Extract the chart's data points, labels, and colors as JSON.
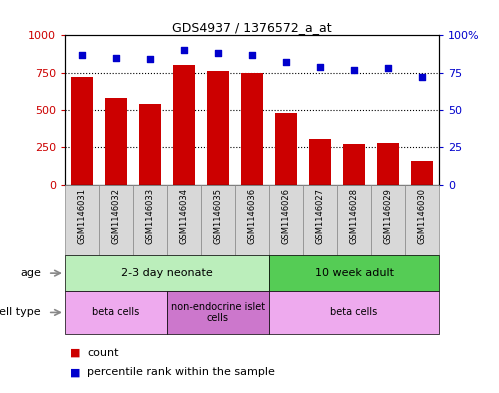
{
  "title": "GDS4937 / 1376572_a_at",
  "samples": [
    "GSM1146031",
    "GSM1146032",
    "GSM1146033",
    "GSM1146034",
    "GSM1146035",
    "GSM1146036",
    "GSM1146026",
    "GSM1146027",
    "GSM1146028",
    "GSM1146029",
    "GSM1146030"
  ],
  "counts": [
    720,
    580,
    540,
    800,
    760,
    750,
    480,
    305,
    275,
    280,
    160
  ],
  "percentiles": [
    87,
    85,
    84,
    90,
    88,
    87,
    82,
    79,
    77,
    78,
    72
  ],
  "bar_color": "#cc0000",
  "dot_color": "#0000cc",
  "ylim_left": [
    0,
    1000
  ],
  "ylim_right": [
    0,
    100
  ],
  "yticks_left": [
    0,
    250,
    500,
    750,
    1000
  ],
  "ytick_labels_left": [
    "0",
    "250",
    "500",
    "750",
    "1000"
  ],
  "yticks_right": [
    0,
    25,
    50,
    75,
    100
  ],
  "ytick_labels_right": [
    "0",
    "25",
    "50",
    "75",
    "100%"
  ],
  "grid_lines": [
    250,
    500,
    750
  ],
  "age_groups": [
    {
      "label": "2-3 day neonate",
      "start": 0,
      "end": 6,
      "color": "#bbeebb"
    },
    {
      "label": "10 week adult",
      "start": 6,
      "end": 11,
      "color": "#55cc55"
    }
  ],
  "cell_type_groups": [
    {
      "label": "beta cells",
      "start": 0,
      "end": 3,
      "color": "#eeaaee"
    },
    {
      "label": "non-endocrine islet\ncells",
      "start": 3,
      "end": 6,
      "color": "#cc77cc"
    },
    {
      "label": "beta cells",
      "start": 6,
      "end": 11,
      "color": "#eeaaee"
    }
  ],
  "sample_box_color": "#d8d8d8",
  "sample_box_edge": "#888888",
  "legend_count_color": "#cc0000",
  "legend_dot_color": "#0000cc",
  "row_label_age": "age",
  "row_label_cell": "cell type",
  "tick_label_color_left": "#cc0000",
  "tick_label_color_right": "#0000cc",
  "arrow_color": "#888888"
}
